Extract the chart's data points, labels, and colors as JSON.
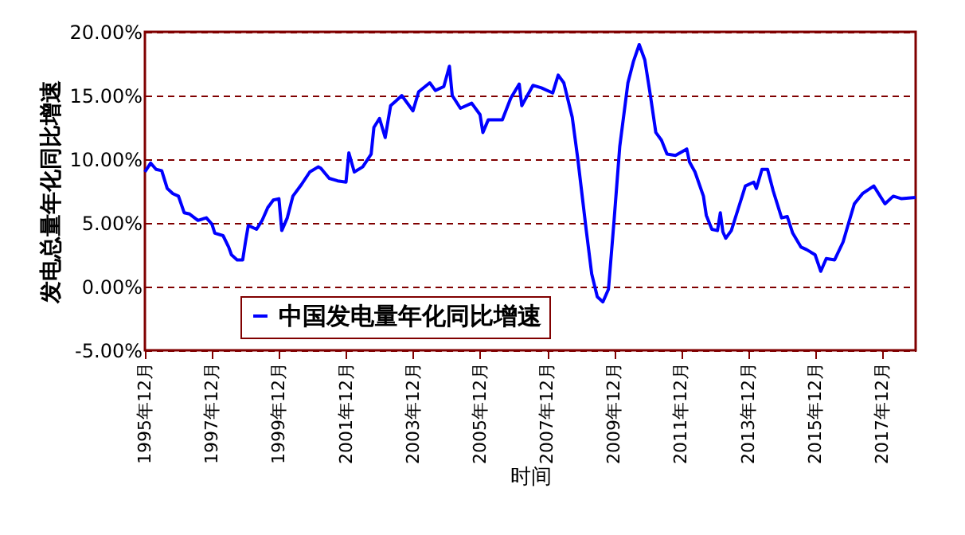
{
  "chart_data": {
    "type": "line",
    "xlabel": "时间",
    "ylabel": "发电总量年化同比增速",
    "xlim": [
      "1995-12",
      "2018-12"
    ],
    "xticks": [
      {
        "value": "1995-12",
        "label": "1995年12月"
      },
      {
        "value": "1997-12",
        "label": "1997年12月"
      },
      {
        "value": "1999-12",
        "label": "1999年12月"
      },
      {
        "value": "2001-12",
        "label": "2001年12月"
      },
      {
        "value": "2003-12",
        "label": "2003年12月"
      },
      {
        "value": "2005-12",
        "label": "2005年12月"
      },
      {
        "value": "2007-12",
        "label": "2007年12月"
      },
      {
        "value": "2009-12",
        "label": "2009年12月"
      },
      {
        "value": "2011-12",
        "label": "2011年12月"
      },
      {
        "value": "2013-12",
        "label": "2013年12月"
      },
      {
        "value": "2015-12",
        "label": "2015年12月"
      },
      {
        "value": "2017-12",
        "label": "2017年12月"
      }
    ],
    "ylim": [
      -5,
      20
    ],
    "yticks": [
      {
        "value": -5,
        "label": "-5.00%"
      },
      {
        "value": 0,
        "label": "0.00%"
      },
      {
        "value": 5,
        "label": "5.00%"
      },
      {
        "value": 10,
        "label": "10.00%"
      },
      {
        "value": 15,
        "label": "15.00%"
      },
      {
        "value": 20,
        "label": "20.00%"
      }
    ],
    "grid": "y",
    "legend": "bottom left",
    "series": [
      {
        "name": "中国发电量年化同比增速",
        "color": "#0000ff",
        "x": [
          "1995-12",
          "1996-02",
          "1996-04",
          "1996-06",
          "1996-08",
          "1996-10",
          "1996-12",
          "1997-02",
          "1997-04",
          "1997-07",
          "1997-10",
          "1997-12",
          "1998-01",
          "1998-04",
          "1998-06",
          "1998-07",
          "1998-09",
          "1998-11",
          "1998-12",
          "1999-01",
          "1999-04",
          "1999-06",
          "1999-08",
          "1999-10",
          "1999-12",
          "2000-01",
          "2000-03",
          "2000-05",
          "2000-08",
          "2000-11",
          "2001-02",
          "2001-03",
          "2001-06",
          "2001-09",
          "2001-12",
          "2002-01",
          "2002-03",
          "2002-06",
          "2002-09",
          "2002-10",
          "2002-12",
          "2003-02",
          "2003-04",
          "2003-06",
          "2003-08",
          "2003-12",
          "2004-02",
          "2004-06",
          "2004-08",
          "2004-11",
          "2005-01",
          "2005-02",
          "2005-05",
          "2005-09",
          "2005-12",
          "2006-01",
          "2006-03",
          "2006-08",
          "2006-11",
          "2007-02",
          "2007-03",
          "2007-07",
          "2007-10",
          "2008-02",
          "2008-04",
          "2008-06",
          "2008-09",
          "2008-11",
          "2009-02",
          "2009-04",
          "2009-06",
          "2009-08",
          "2009-10",
          "2009-12",
          "2010-02",
          "2010-05",
          "2010-07",
          "2010-09",
          "2010-11",
          "2011-01",
          "2011-03",
          "2011-05",
          "2011-07",
          "2011-10",
          "2012-02",
          "2012-03",
          "2012-05",
          "2012-08",
          "2012-09",
          "2012-11",
          "2013-01",
          "2013-02",
          "2013-03",
          "2013-04",
          "2013-06",
          "2013-09",
          "2013-11",
          "2014-02",
          "2014-03",
          "2014-05",
          "2014-07",
          "2014-09",
          "2014-12",
          "2015-02",
          "2015-04",
          "2015-07",
          "2015-09",
          "2015-12",
          "2016-02",
          "2016-04",
          "2016-07",
          "2016-10",
          "2016-12",
          "2017-02",
          "2017-05",
          "2017-09",
          "2018-01",
          "2018-04",
          "2018-07",
          "2018-12"
        ],
        "values": [
          9.0,
          9.7,
          9.2,
          9.1,
          7.7,
          7.3,
          7.1,
          5.8,
          5.7,
          5.2,
          5.4,
          4.9,
          4.2,
          4.0,
          3.1,
          2.5,
          2.1,
          2.1,
          3.5,
          4.8,
          4.5,
          5.2,
          6.2,
          6.8,
          6.9,
          4.4,
          5.4,
          7.1,
          8.0,
          9.0,
          9.4,
          9.3,
          8.5,
          8.3,
          8.2,
          10.5,
          9.0,
          9.4,
          10.4,
          12.5,
          13.2,
          11.7,
          14.2,
          14.6,
          15.0,
          13.8,
          15.3,
          16.0,
          15.4,
          15.7,
          17.3,
          15.0,
          14.0,
          14.4,
          13.5,
          12.1,
          13.1,
          13.1,
          14.8,
          15.9,
          14.2,
          15.8,
          15.6,
          15.2,
          16.6,
          16.0,
          13.3,
          10.0,
          4.4,
          1.0,
          -0.8,
          -1.2,
          -0.2,
          5.2,
          11.0,
          16.0,
          17.7,
          19.0,
          17.8,
          15.0,
          12.1,
          11.5,
          10.4,
          10.3,
          10.8,
          9.8,
          9.0,
          7.1,
          5.6,
          4.5,
          4.4,
          5.8,
          4.3,
          3.8,
          4.4,
          6.5,
          7.9,
          8.2,
          7.7,
          9.2,
          9.2,
          7.5,
          5.4,
          5.5,
          4.2,
          3.1,
          2.9,
          2.5,
          1.2,
          2.2,
          2.1,
          3.5,
          5.0,
          6.5,
          7.3,
          7.9,
          6.5,
          7.1,
          6.9,
          7.0
        ]
      }
    ]
  }
}
